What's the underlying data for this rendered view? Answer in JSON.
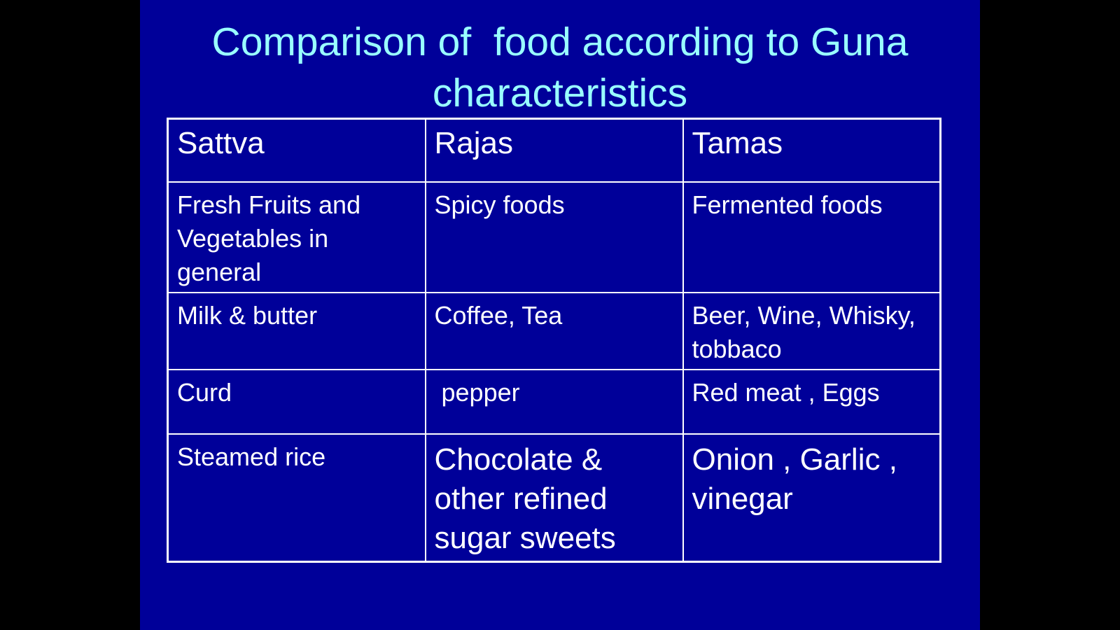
{
  "slide": {
    "title": "Comparison of  food according to Guna characteristics",
    "background_color": "#000099",
    "title_color": "#99FFFF",
    "text_color": "#FFFFFF"
  },
  "table": {
    "headers": [
      "Sattva",
      "Rajas",
      "Tamas"
    ],
    "rows": [
      [
        "Fresh Fruits and Vegetables in general",
        "Spicy foods",
        "Fermented foods"
      ],
      [
        "Milk & butter",
        "Coffee, Tea",
        "Beer, Wine, Whisky, tobbaco"
      ],
      [
        "Curd",
        " pepper",
        "Red meat , Eggs"
      ],
      [
        "Steamed rice",
        "Chocolate & other refined sugar sweets",
        "Onion , Garlic , vinegar"
      ]
    ]
  }
}
